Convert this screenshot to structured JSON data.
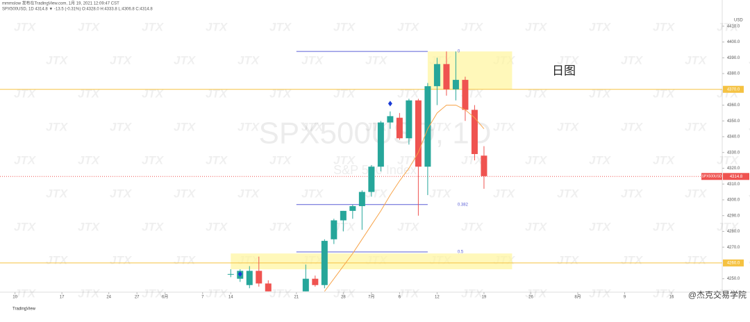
{
  "header": {
    "line1": "mmmslow 发布在TradingView.com, 1月 19, 2021 12:09:47 CST",
    "line2": "SPX500USD, 1D 4314.8 ▼ -13.5 (-0.31%) O:4328.0 H:4333.8 L:4306.8 C:4314.8"
  },
  "watermark": {
    "symbol": "SPX500USD, 1D",
    "description": "S&P 500 Index",
    "logo": "JTX"
  },
  "footer": {
    "brand": "TradingView",
    "credit": "@杰克交易学院"
  },
  "chart_data": {
    "type": "candlestick",
    "currency": "USD",
    "annotation": "日图",
    "x": [
      23,
      24,
      25,
      26,
      27,
      31,
      32,
      33,
      34,
      35,
      36,
      37,
      38,
      39,
      40,
      41,
      42,
      43,
      44,
      45,
      46,
      47,
      48,
      49,
      50
    ],
    "open": [
      4253,
      4250,
      4246,
      4255,
      4247,
      4242,
      4250,
      4246,
      4275,
      4287,
      4293,
      4296,
      4305,
      4321,
      4349,
      4352,
      4339,
      4363,
      4321,
      4372,
      4386,
      4370,
      4376,
      4357,
      4328
    ],
    "high": [
      4256,
      4256,
      4258,
      4264,
      4249,
      4259,
      4252,
      4275,
      4288,
      4293,
      4297,
      4306,
      4322,
      4350,
      4356,
      4355,
      4364,
      4364,
      4374,
      4390,
      4394,
      4394,
      4378,
      4360,
      4334
    ],
    "low": [
      4251,
      4248,
      4244,
      4245,
      4242,
      4242,
      4245,
      4244,
      4272,
      4280,
      4288,
      4281,
      4302,
      4318,
      4345,
      4338,
      4335,
      4290,
      4303,
      4360,
      4366,
      4363,
      4350,
      4325,
      4307
    ],
    "close": [
      4253,
      4255,
      4255,
      4247,
      4242,
      4250,
      4246,
      4274,
      4287,
      4293,
      4296,
      4305,
      4321,
      4349,
      4353,
      4339,
      4363,
      4321,
      4372,
      4386,
      4370,
      4376,
      4357,
      4329,
      4315
    ],
    "up_color": "#26a69a",
    "down_color": "#ef5350",
    "ma": {
      "color": "#f7a44a",
      "x": [
        33,
        34,
        35,
        36,
        37,
        38,
        39,
        40,
        41,
        42,
        43,
        44,
        45,
        46,
        47,
        48,
        49,
        50
      ],
      "values": [
        4242,
        4250,
        4258,
        4266,
        4275,
        4284,
        4293,
        4303,
        4312,
        4320,
        4330,
        4345,
        4355,
        4360,
        4360,
        4357,
        4352,
        4345
      ]
    },
    "markers": {
      "color": "#1a3bd6",
      "x": [
        24,
        40
      ],
      "values": [
        4253,
        4361
      ]
    },
    "levels": {
      "color": "#f5c242",
      "values": [
        4370,
        4260
      ],
      "labels": [
        "4370.0",
        "4260.0"
      ]
    },
    "zones": [
      {
        "x": [
          44,
          53
        ],
        "y": [
          4370,
          4394
        ]
      },
      {
        "x": [
          23,
          53
        ],
        "y": [
          4256,
          4266
        ]
      }
    ],
    "fib": {
      "color": "#5a5fd6",
      "x": [
        30,
        44
      ],
      "levels": [
        {
          "value": 4394,
          "label": "0"
        },
        {
          "value": 4297,
          "label": "0.382"
        },
        {
          "value": 4267,
          "label": "0.5"
        }
      ]
    },
    "last_price": {
      "value": 4314.8,
      "label": "4314.8",
      "name": "SPX500USD"
    },
    "xlim": [
      -1.6,
      75.4
    ],
    "ylim": [
      4241.5,
      4426.6
    ],
    "xticks": [
      {
        "value": 0,
        "label": "10"
      },
      {
        "value": 5,
        "label": "17"
      },
      {
        "value": 10,
        "label": "24"
      },
      {
        "value": 13,
        "label": "27"
      },
      {
        "value": 16,
        "label": "6月"
      },
      {
        "value": 20,
        "label": "7"
      },
      {
        "value": 23,
        "label": "14"
      },
      {
        "value": 30,
        "label": "21"
      },
      {
        "value": 35,
        "label": "28"
      },
      {
        "value": 38,
        "label": "7月"
      },
      {
        "value": 41,
        "label": "6"
      },
      {
        "value": 45,
        "label": "12"
      },
      {
        "value": 50,
        "label": "19"
      },
      {
        "value": 55,
        "label": "26"
      },
      {
        "value": 60,
        "label": "8月"
      },
      {
        "value": 65,
        "label": "9"
      },
      {
        "value": 70,
        "label": "16"
      }
    ],
    "yticks": [
      {
        "value": 4250,
        "label": "4250.0"
      },
      {
        "value": 4270,
        "label": "4270.0"
      },
      {
        "value": 4280,
        "label": "4280.0"
      },
      {
        "value": 4290,
        "label": "4290.0"
      },
      {
        "value": 4300,
        "label": "4300.0"
      },
      {
        "value": 4310,
        "label": "4310.0"
      },
      {
        "value": 4320,
        "label": "4320.0"
      },
      {
        "value": 4330,
        "label": "4330.0"
      },
      {
        "value": 4340,
        "label": "4340.0"
      },
      {
        "value": 4350,
        "label": "4350.0"
      },
      {
        "value": 4360,
        "label": "4360.0"
      },
      {
        "value": 4380,
        "label": "4380.0"
      },
      {
        "value": 4390,
        "label": "4390.0"
      },
      {
        "value": 4400,
        "label": "4400.0"
      },
      {
        "value": 4410,
        "label": "4410.0"
      }
    ]
  }
}
